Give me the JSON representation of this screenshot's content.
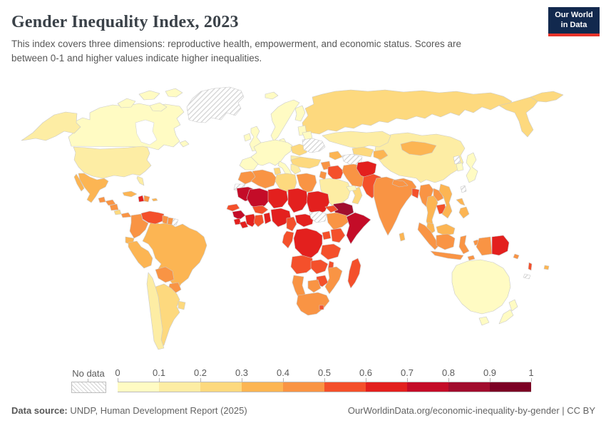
{
  "header": {
    "title": "Gender Inequality Index, 2023",
    "subtitle": "This index covers three dimensions: reproductive health, empowerment, and economic status. Scores are between 0-1 and higher values indicate higher inequalities."
  },
  "logo": {
    "line1": "Our World",
    "line2": "in Data",
    "navy": "#12294e",
    "red": "#e8332a"
  },
  "legend": {
    "no_data_label": "No data",
    "tick_labels": [
      "0",
      "0.1",
      "0.2",
      "0.3",
      "0.4",
      "0.5",
      "0.6",
      "0.7",
      "0.8",
      "0.9",
      "1"
    ],
    "colors": [
      "#FFFBC3",
      "#FDEDA4",
      "#FDD97E",
      "#FCB553",
      "#F99444",
      "#F4502B",
      "#E3201E",
      "#C40C28",
      "#A10D2E",
      "#7C0125"
    ],
    "no_data_pattern": "gray-diagonal-hatch"
  },
  "footer": {
    "datasource_prefix": "Data source:",
    "datasource_text": " UNDP, Human Development Report (2025)",
    "right_text": "OurWorldinData.org/economic-inequality-by-gender | CC BY"
  },
  "chart_data": {
    "type": "heatmap",
    "subtype": "choropleth-world-map",
    "title": "Gender Inequality Index, 2023",
    "value_range": [
      0,
      1
    ],
    "bins": 10,
    "legend_position": "bottom",
    "regions": {
      "greenland": {
        "label": "Greenland",
        "value": null
      },
      "canada": {
        "label": "Canada",
        "value": 0.07
      },
      "arctic1": {
        "label": "Canadian Arctic Islands",
        "value": 0.07
      },
      "arctic2": {
        "label": "Canadian Arctic Islands",
        "value": 0.07
      },
      "arctic3": {
        "label": "Canadian Arctic Islands",
        "value": 0.07
      },
      "arctic4": {
        "label": "Canadian Arctic Islands",
        "value": 0.07
      },
      "newfoundland": {
        "label": "Newfoundland (Canada)",
        "value": 0.07
      },
      "alaska": {
        "label": "Alaska (United States)",
        "value": 0.18
      },
      "usa": {
        "label": "United States",
        "value": 0.18
      },
      "mexico": {
        "label": "Mexico",
        "value": 0.35
      },
      "baja": {
        "label": "Baja California (Mexico)",
        "value": 0.35
      },
      "guatemala": {
        "label": "Guatemala",
        "value": 0.47
      },
      "honduras": {
        "label": "Honduras",
        "value": 0.43
      },
      "nicaragua": {
        "label": "Nicaragua",
        "value": 0.43
      },
      "costarica": {
        "label": "Costa Rica",
        "value": 0.29
      },
      "panama": {
        "label": "Panama",
        "value": 0.45
      },
      "cuba": {
        "label": "Cuba",
        "value": 0.3
      },
      "haiti": {
        "label": "Haiti",
        "value": 0.61
      },
      "domrep": {
        "label": "Dominican Republic",
        "value": 0.42
      },
      "puertorico": {
        "label": "Puerto Rico",
        "value": 0.36
      },
      "venezuela": {
        "label": "Venezuela",
        "value": 0.52
      },
      "colombia": {
        "label": "Colombia",
        "value": 0.42
      },
      "guyana": {
        "label": "Guyana",
        "value": 0.46
      },
      "suriname": {
        "label": "Suriname",
        "value": 0.42
      },
      "frguiana": {
        "label": "French Guiana",
        "value": null
      },
      "ecuador": {
        "label": "Ecuador",
        "value": 0.36
      },
      "peru": {
        "label": "Peru",
        "value": 0.36
      },
      "brazil": {
        "label": "Brazil",
        "value": 0.39
      },
      "bolivia": {
        "label": "Bolivia",
        "value": 0.42
      },
      "paraguay": {
        "label": "Paraguay",
        "value": 0.43
      },
      "chile": {
        "label": "Chile",
        "value": 0.19
      },
      "argentina": {
        "label": "Argentina",
        "value": 0.29
      },
      "uruguay": {
        "label": "Uruguay",
        "value": 0.23
      },
      "iceland": {
        "label": "Iceland",
        "value": 0.03
      },
      "ireland": {
        "label": "Ireland",
        "value": 0.07
      },
      "uk": {
        "label": "United Kingdom",
        "value": 0.08
      },
      "scandinavia": {
        "label": "Norway / Sweden",
        "value": 0.04
      },
      "finland": {
        "label": "Finland",
        "value": 0.05
      },
      "denmark": {
        "label": "Denmark",
        "value": 0.02
      },
      "baltics": {
        "label": "Baltic states",
        "value": 0.08
      },
      "westeurope": {
        "label": "Western / Central Europe",
        "value": 0.07
      },
      "iberia": {
        "label": "Spain / Portugal",
        "value": 0.06
      },
      "italy": {
        "label": "Italy",
        "value": 0.06
      },
      "romania": {
        "label": "Romania / Hungary",
        "value": 0.23
      },
      "balkans": {
        "label": "Balkans",
        "value": 0.16
      },
      "greece": {
        "label": "Greece",
        "value": 0.12
      },
      "belarus": {
        "label": "Belarus",
        "value": 0.09
      },
      "ukraine": {
        "label": "Ukraine",
        "value": null
      },
      "russia": {
        "label": "Russia",
        "value": 0.21
      },
      "kamchatka": {
        "label": "Russian Far East",
        "value": 0.21
      },
      "chukotka": {
        "label": "Russian Far East",
        "value": 0.21
      },
      "kazakh": {
        "label": "Kazakhstan",
        "value": 0.18
      },
      "uzbek": {
        "label": "Uzbekistan",
        "value": 0.22
      },
      "turkmenistan": {
        "label": "Turkmenistan",
        "value": null
      },
      "kyrgyztajik": {
        "label": "Kyrgyzstan / Tajikistan",
        "value": 0.32
      },
      "caucasus": {
        "label": "Caucasus",
        "value": 0.32
      },
      "turkey": {
        "label": "Turkey",
        "value": 0.26
      },
      "syria": {
        "label": "Syria",
        "value": 0.47
      },
      "iraq": {
        "label": "Iraq",
        "value": 0.56
      },
      "jordan": {
        "label": "Jordan",
        "value": 0.44
      },
      "saudi": {
        "label": "Saudi Arabia",
        "value": 0.18
      },
      "yemen": {
        "label": "Yemen",
        "value": 0.82
      },
      "oman": {
        "label": "Oman",
        "value": 0.24
      },
      "uae": {
        "label": "United Arab Emirates",
        "value": 0.04
      },
      "iran": {
        "label": "Iran",
        "value": 0.49
      },
      "afghanistan": {
        "label": "Afghanistan",
        "value": 0.66
      },
      "pakistan": {
        "label": "Pakistan",
        "value": 0.52
      },
      "morocco": {
        "label": "Morocco",
        "value": 0.44
      },
      "wsahara": {
        "label": "Western Sahara",
        "value": null
      },
      "algeria": {
        "label": "Algeria",
        "value": 0.46
      },
      "tunisia": {
        "label": "Tunisia",
        "value": 0.26
      },
      "libya": {
        "label": "Libya",
        "value": 0.25
      },
      "egypt": {
        "label": "Egypt",
        "value": 0.43
      },
      "mauritania": {
        "label": "Mauritania",
        "value": 0.71
      },
      "mali": {
        "label": "Mali",
        "value": 0.71
      },
      "niger": {
        "label": "Niger",
        "value": 0.61
      },
      "chad": {
        "label": "Chad",
        "value": 0.67
      },
      "sudan": {
        "label": "Sudan",
        "value": 0.66
      },
      "senegal": {
        "label": "Senegal",
        "value": 0.53
      },
      "guinea": {
        "label": "Guinea",
        "value": 0.73
      },
      "sierraleone": {
        "label": "Sierra Leone",
        "value": 0.61
      },
      "liberia": {
        "label": "Liberia",
        "value": 0.66
      },
      "ivorycoast": {
        "label": "Cote d'Ivoire",
        "value": 0.61
      },
      "ghana": {
        "label": "Ghana",
        "value": 0.53
      },
      "togobenin": {
        "label": "Togo / Benin",
        "value": 0.6
      },
      "burkina": {
        "label": "Burkina Faso",
        "value": 0.57
      },
      "nigeria": {
        "label": "Nigeria",
        "value": 0.68
      },
      "cameroon": {
        "label": "Cameroon",
        "value": 0.56
      },
      "car": {
        "label": "Central African Republic",
        "value": 0.68
      },
      "ssudan": {
        "label": "South Sudan",
        "value": null
      },
      "eritrea": {
        "label": "Eritrea",
        "value": 0.56
      },
      "ethiopia": {
        "label": "Ethiopia",
        "value": 0.49
      },
      "somalia": {
        "label": "Somalia",
        "value": 0.77
      },
      "uganda": {
        "label": "Uganda",
        "value": 0.52
      },
      "kenya": {
        "label": "Kenya",
        "value": 0.53
      },
      "drc": {
        "label": "Democratic Republic of Congo",
        "value": 0.62
      },
      "congogabon": {
        "label": "Congo / Gabon",
        "value": 0.56
      },
      "tanzania": {
        "label": "Tanzania",
        "value": 0.56
      },
      "angola": {
        "label": "Angola",
        "value": 0.52
      },
      "zambia": {
        "label": "Zambia",
        "value": 0.55
      },
      "malawi": {
        "label": "Malawi",
        "value": 0.55
      },
      "mozambique": {
        "label": "Mozambique",
        "value": 0.47
      },
      "zimbabwe": {
        "label": "Zimbabwe",
        "value": 0.52
      },
      "botswana": {
        "label": "Botswana",
        "value": 0.48
      },
      "namibia": {
        "label": "Namibia",
        "value": 0.45
      },
      "southafrica": {
        "label": "South Africa",
        "value": 0.4
      },
      "lesotho": {
        "label": "Lesotho",
        "value": 0.55
      },
      "madagascar": {
        "label": "Madagascar",
        "value": 0.57
      },
      "india": {
        "label": "India",
        "value": 0.44
      },
      "nepal": {
        "label": "Nepal",
        "value": 0.42
      },
      "bangladesh": {
        "label": "Bangladesh",
        "value": 0.5
      },
      "srilanka": {
        "label": "Sri Lanka",
        "value": 0.37
      },
      "myanmar": {
        "label": "Myanmar",
        "value": 0.48
      },
      "thailand": {
        "label": "Thailand",
        "value": 0.31
      },
      "laos": {
        "label": "Laos",
        "value": 0.46
      },
      "cambodia": {
        "label": "Cambodia",
        "value": 0.52
      },
      "vietnam": {
        "label": "Vietnam",
        "value": 0.38
      },
      "malaysia": {
        "label": "Malaysia",
        "value": 0.3
      },
      "china": {
        "label": "China",
        "value": 0.19
      },
      "mongolia": {
        "label": "Mongolia",
        "value": 0.32
      },
      "nkorea": {
        "label": "North Korea",
        "value": null
      },
      "skorea": {
        "label": "South Korea",
        "value": 0.06
      },
      "japan": {
        "label": "Japan",
        "value": 0.08
      },
      "taiwan": {
        "label": "Taiwan",
        "value": null
      },
      "philippines": {
        "label": "Philippines",
        "value": 0.39
      },
      "indonesia": {
        "label": "Indonesia",
        "value": 0.44
      },
      "timor": {
        "label": "Timor-Leste",
        "value": 0.42
      },
      "png": {
        "label": "Papua New Guinea",
        "value": 0.6
      },
      "solomon": {
        "label": "Solomon Islands",
        "value": 0.42
      },
      "vanuatu": {
        "label": "Vanuatu",
        "value": 0.55
      },
      "fiji": {
        "label": "Fiji",
        "value": 0.38
      },
      "newcaledonia": {
        "label": "New Caledonia",
        "value": null
      },
      "australia": {
        "label": "Australia",
        "value": 0.06
      },
      "tasmania": {
        "label": "Tasmania (Australia)",
        "value": 0.06
      },
      "nz-north": {
        "label": "New Zealand",
        "value": 0.08
      },
      "nz-south": {
        "label": "New Zealand",
        "value": 0.08
      }
    }
  }
}
